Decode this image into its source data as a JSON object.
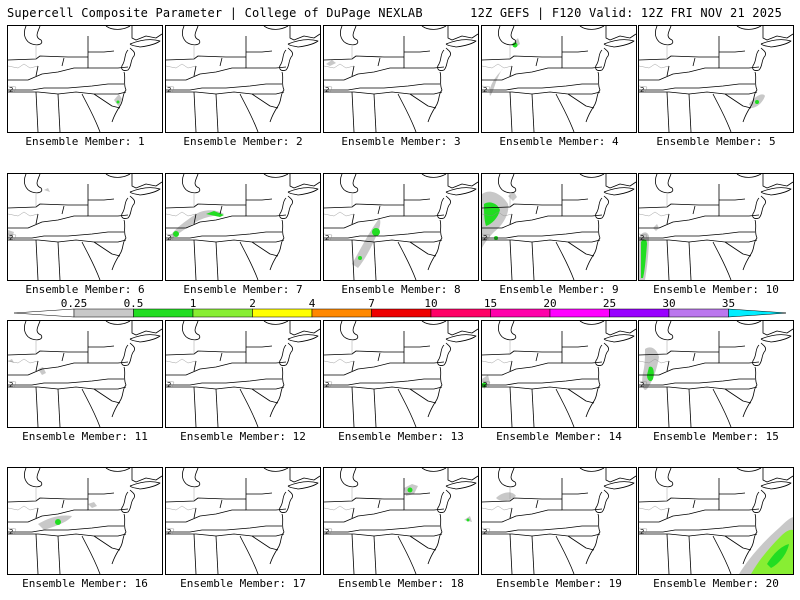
{
  "header": {
    "title": "Supercell Composite Parameter | College of DuPage NEXLAB",
    "run_info": "12Z GEFS | F120 Valid: 12Z FRI NOV 21 2025"
  },
  "members": [
    {
      "label": "Ensemble Member: 1"
    },
    {
      "label": "Ensemble Member: 2"
    },
    {
      "label": "Ensemble Member: 3"
    },
    {
      "label": "Ensemble Member: 4"
    },
    {
      "label": "Ensemble Member: 5"
    },
    {
      "label": "Ensemble Member: 6"
    },
    {
      "label": "Ensemble Member: 7"
    },
    {
      "label": "Ensemble Member: 8"
    },
    {
      "label": "Ensemble Member: 9"
    },
    {
      "label": "Ensemble Member: 10"
    },
    {
      "label": "Ensemble Member: 11"
    },
    {
      "label": "Ensemble Member: 12"
    },
    {
      "label": "Ensemble Member: 13"
    },
    {
      "label": "Ensemble Member: 14"
    },
    {
      "label": "Ensemble Member: 15"
    },
    {
      "label": "Ensemble Member: 16"
    },
    {
      "label": "Ensemble Member: 17"
    },
    {
      "label": "Ensemble Member: 18"
    },
    {
      "label": "Ensemble Member: 19"
    },
    {
      "label": "Ensemble Member: 20"
    }
  ],
  "colorbar": {
    "ticks": [
      "0.25",
      "0.5",
      "1",
      "2",
      "4",
      "7",
      "10",
      "15",
      "20",
      "25",
      "30",
      "35"
    ],
    "colors": [
      "#c8c8c8",
      "#22dd22",
      "#88ee33",
      "#ffff00",
      "#ff8800",
      "#ee0000",
      "#ff0066",
      "#ff00aa",
      "#ff00ff",
      "#9900ff",
      "#bb77ee",
      "#00eeff"
    ],
    "low_color": "#ffffff",
    "high_color": "#00eeff"
  }
}
